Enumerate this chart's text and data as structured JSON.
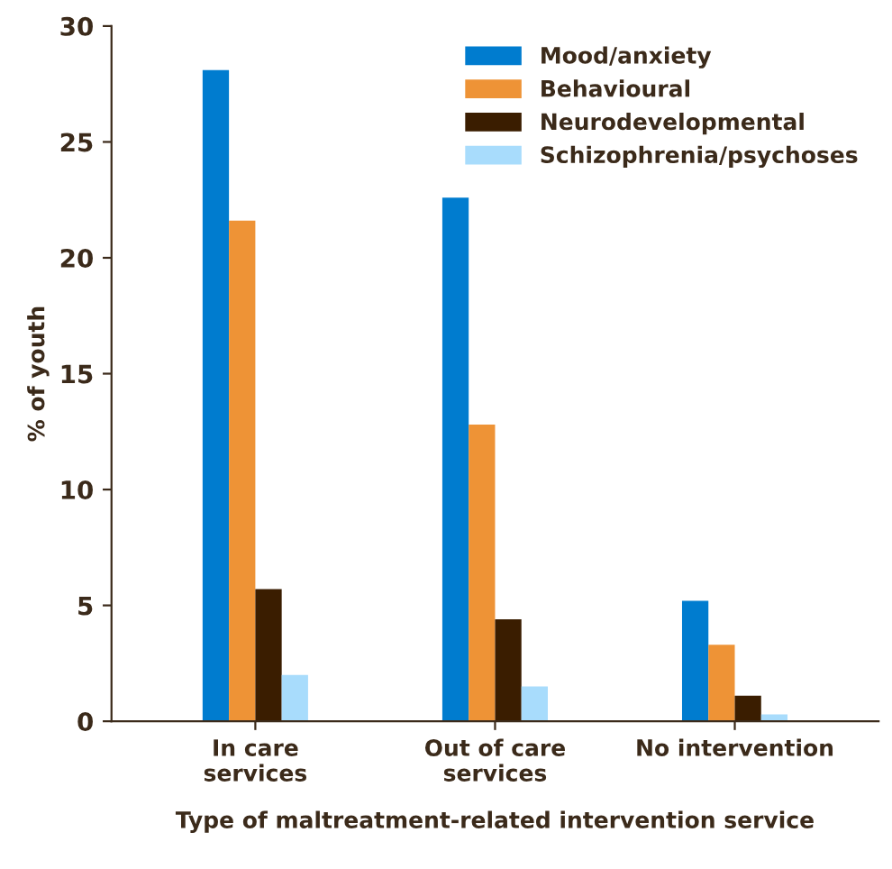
{
  "chart_data": {
    "type": "bar",
    "xlabel": "Type of maltreatment-related intervention service",
    "ylabel": "% of youth",
    "categories": [
      "In care\nservices",
      "Out of care\nservices",
      "No intervention"
    ],
    "series": [
      {
        "name": "Mood/anxiety",
        "color": "#007ccf",
        "values": [
          28.1,
          22.6,
          5.2
        ]
      },
      {
        "name": "Behavioural",
        "color": "#ee9336",
        "values": [
          21.6,
          12.8,
          3.3
        ]
      },
      {
        "name": "Neurodevelopmental",
        "color": "#3a1d00",
        "values": [
          5.7,
          4.4,
          1.1
        ]
      },
      {
        "name": "Schizophrenia/psychoses",
        "color": "#a8dcfc",
        "values": [
          2.0,
          1.5,
          0.3
        ]
      }
    ],
    "ylim": [
      0,
      30
    ],
    "yticks": [
      0,
      5,
      10,
      15,
      20,
      25,
      30
    ],
    "grid": false,
    "legend": "top right"
  }
}
